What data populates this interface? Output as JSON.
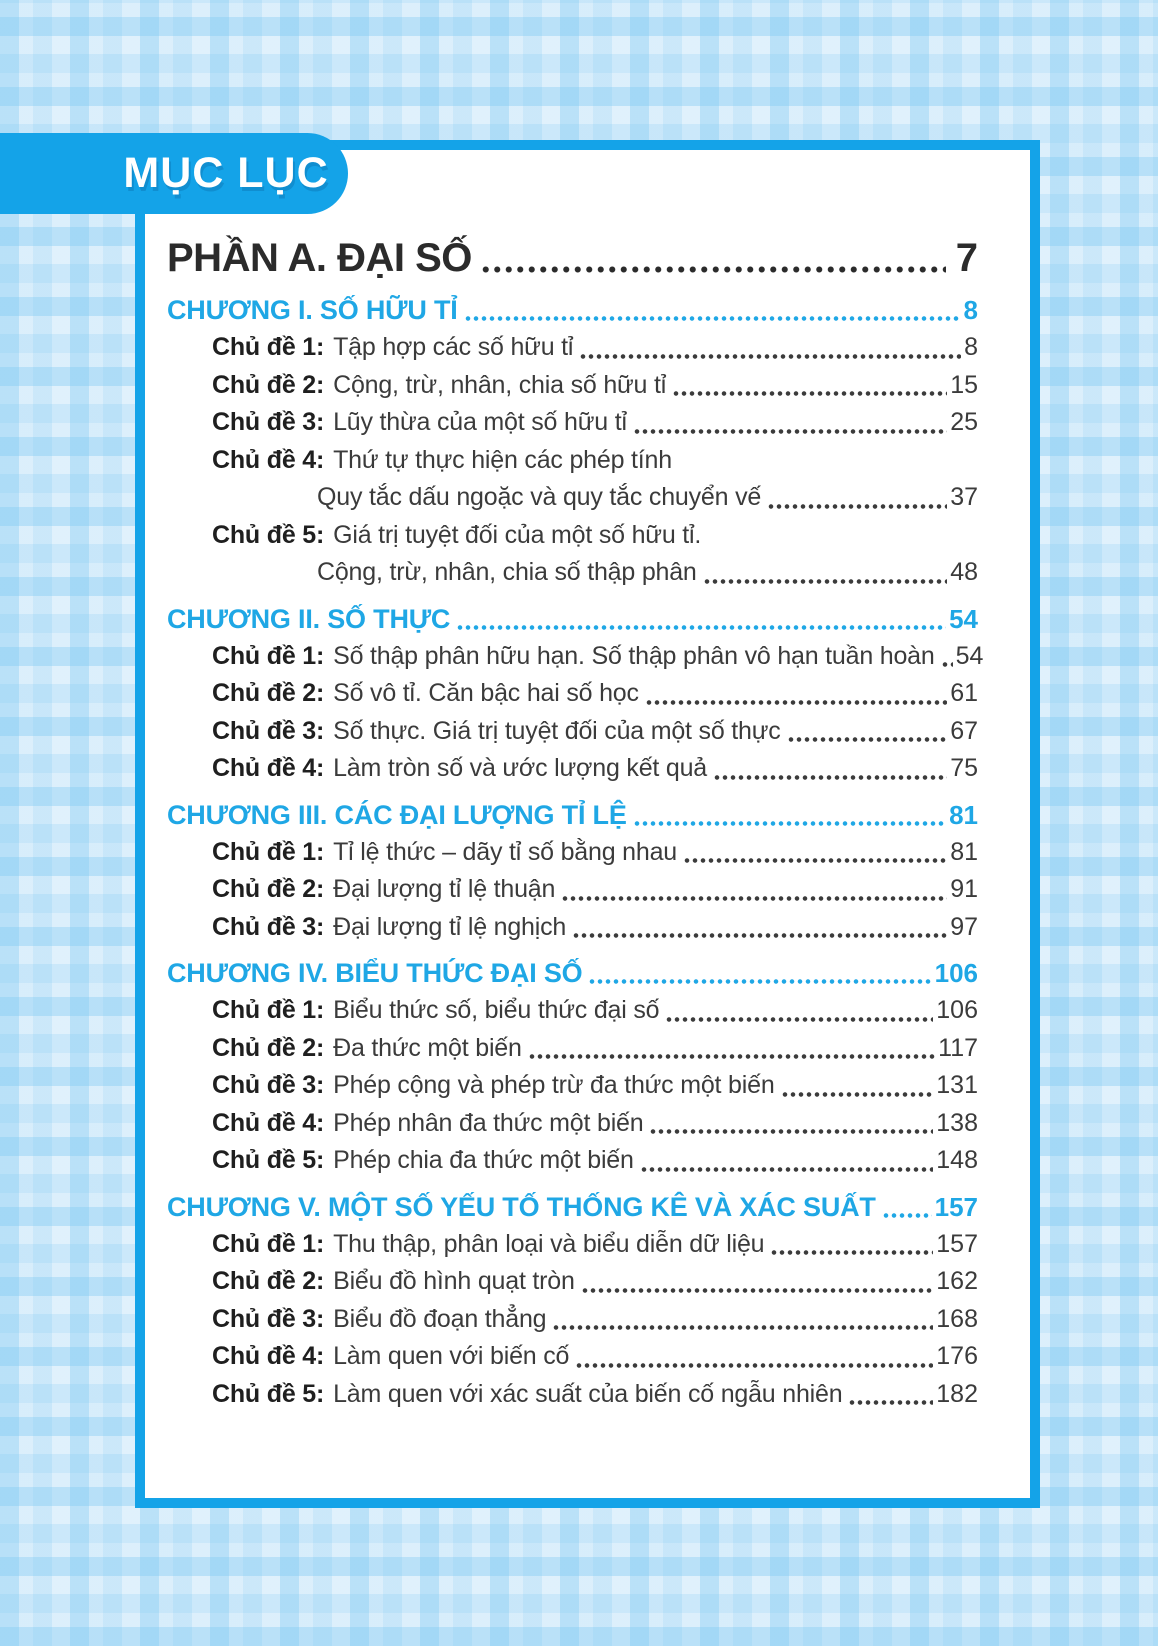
{
  "palette": {
    "tab_blue": "#14a3e8",
    "chapter_cyan": "#1fa7e5",
    "title_ink": "#2b2b2b",
    "body_text": "#3b3b3b",
    "plaid_background": "#cfe9f9"
  },
  "tab": {
    "label": "MỤC LỤC"
  },
  "toc": {
    "part": {
      "label": "PHẦN A. ĐẠI SỐ",
      "page": "7"
    },
    "chapters": [
      {
        "title": "CHƯƠNG I. SỐ HỮU TỈ",
        "page": "8",
        "topics": [
          {
            "label": "Chủ đề 1:",
            "text": "Tập hợp các số hữu tỉ",
            "page": "8"
          },
          {
            "label": "Chủ đề 2:",
            "text": "Cộng, trừ, nhân, chia số hữu tỉ",
            "page": "15"
          },
          {
            "label": "Chủ đề 3:",
            "text": "Lũy thừa của một số hữu tỉ",
            "page": "25"
          },
          {
            "label": "Chủ đề 4:",
            "text": "Thứ tự thực hiện các phép tính",
            "text2": "Quy tắc dấu ngoặc và quy tắc chuyển vế",
            "page": "37"
          },
          {
            "label": "Chủ đề 5:",
            "text": "Giá trị tuyệt đối của một số hữu tỉ.",
            "text2": "Cộng, trừ, nhân, chia số thập phân",
            "page": "48"
          }
        ]
      },
      {
        "title": "CHƯƠNG II. SỐ THỰC",
        "page": "54",
        "topics": [
          {
            "label": "Chủ đề 1:",
            "text": "Số thập phân hữu hạn. Số thập phân vô hạn tuần hoàn",
            "page": "54"
          },
          {
            "label": "Chủ đề 2:",
            "text": "Số vô tỉ. Căn bậc hai số học",
            "page": "61"
          },
          {
            "label": "Chủ đề 3:",
            "text": "Số thực. Giá trị tuyệt đối của một số thực",
            "page": "67"
          },
          {
            "label": "Chủ đề 4:",
            "text": "Làm tròn số và ước lượng kết quả",
            "page": "75"
          }
        ]
      },
      {
        "title": "CHƯƠNG III. CÁC ĐẠI LƯỢNG TỈ LỆ",
        "page": "81",
        "topics": [
          {
            "label": "Chủ đề 1:",
            "text": "Tỉ lệ thức – dãy tỉ số bằng nhau",
            "page": "81"
          },
          {
            "label": "Chủ đề 2:",
            "text": "Đại lượng tỉ lệ thuận",
            "page": "91"
          },
          {
            "label": "Chủ đề 3:",
            "text": "Đại lượng tỉ lệ nghịch",
            "page": "97"
          }
        ]
      },
      {
        "title": "CHƯƠNG IV. BIỂU THỨC ĐẠI SỐ",
        "page": "106",
        "topics": [
          {
            "label": "Chủ đề 1:",
            "text": "Biểu thức số, biểu thức đại số",
            "page": "106"
          },
          {
            "label": "Chủ đề 2:",
            "text": "Đa thức một biến",
            "page": "117"
          },
          {
            "label": "Chủ đề 3:",
            "text": "Phép cộng và phép trừ đa thức một biến",
            "page": "131"
          },
          {
            "label": "Chủ đề 4:",
            "text": "Phép nhân đa thức một biến",
            "page": "138"
          },
          {
            "label": "Chủ đề 5:",
            "text": "Phép chia đa thức một biến",
            "page": "148"
          }
        ]
      },
      {
        "title": "CHƯƠNG V. MỘT SỐ YẾU TỐ THỐNG KÊ VÀ XÁC SUẤT",
        "page": "157",
        "topics": [
          {
            "label": "Chủ đề 1:",
            "text": "Thu thập, phân loại và biểu diễn dữ liệu",
            "page": "157"
          },
          {
            "label": "Chủ đề 2:",
            "text": "Biểu đồ hình quạt tròn",
            "page": "162"
          },
          {
            "label": "Chủ đề 3:",
            "text": "Biểu đồ đoạn thẳng",
            "page": "168"
          },
          {
            "label": "Chủ đề 4:",
            "text": "Làm quen với biến cố",
            "page": "176"
          },
          {
            "label": "Chủ đề 5:",
            "text": "Làm quen với xác suất của biến cố ngẫu nhiên",
            "page": "182"
          }
        ]
      }
    ]
  }
}
